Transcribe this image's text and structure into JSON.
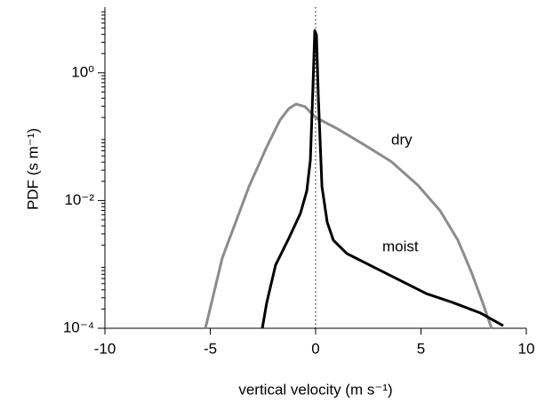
{
  "chart_data": {
    "type": "line",
    "xlabel": "vertical velocity (m s⁻¹)",
    "ylabel": "PDF (s m⁻¹)",
    "log_y": true,
    "xlim": [
      -10,
      10
    ],
    "xticks": [
      -10,
      -5,
      0,
      5,
      10
    ],
    "ylim": [
      0.0001,
      10
    ],
    "yticks": [
      {
        "value": 0.0001,
        "label": "10⁻⁴"
      },
      {
        "value": 0.01,
        "label": "10⁻²"
      },
      {
        "value": 1,
        "label": "10⁰"
      }
    ],
    "series": [
      {
        "name": "dry",
        "color": "#8c8c8c",
        "x": [
          -5.23,
          -4.43,
          -3.16,
          -2.32,
          -1.69,
          -1.27,
          -0.93,
          -0.51,
          0,
          1.05,
          2.32,
          3.59,
          4.85,
          5.91,
          6.75,
          7.38,
          7.93,
          8.35
        ],
        "values": [
          0.0001,
          0.00126,
          0.0166,
          0.0692,
          0.182,
          0.275,
          0.324,
          0.295,
          0.2,
          0.132,
          0.0741,
          0.0407,
          0.0174,
          0.00692,
          0.0024,
          0.000776,
          0.000251,
          0.0001
        ]
      },
      {
        "name": "moist",
        "color": "#000000",
        "x": [
          -2.53,
          -2.32,
          -1.9,
          -1.27,
          -0.72,
          -0.42,
          -0.25,
          -0.13,
          -0.04,
          0.04,
          0.13,
          0.3,
          0.55,
          0.84,
          1.48,
          2.74,
          4.01,
          5.27,
          6.54,
          7.81,
          8.9
        ],
        "values": [
          0.0001,
          0.000251,
          0.000977,
          0.00257,
          0.00631,
          0.0141,
          0.0427,
          0.562,
          4.57,
          3.89,
          0.407,
          0.0166,
          0.00457,
          0.0024,
          0.00148,
          0.000912,
          0.000562,
          0.000347,
          0.000251,
          0.000174,
          0.00011
        ]
      }
    ]
  }
}
